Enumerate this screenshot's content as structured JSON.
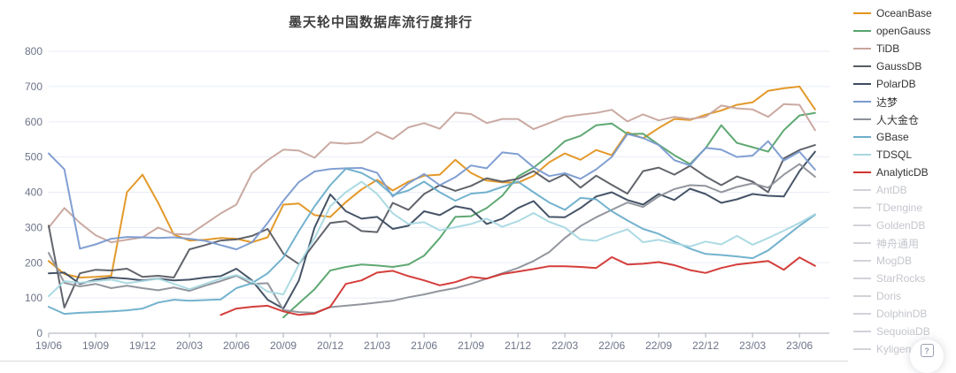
{
  "title": "墨天轮中国数据库流行度排行",
  "help_button": {
    "icon_glyph": "?"
  },
  "style_colors": {
    "grid": "#E8EDF6",
    "axis": "#A9AEB8",
    "axis_label": "#6E7488",
    "title_text": "#3E3E3E",
    "inactive_legend_text": "#C4C6CC",
    "inactive_legend_swatch": "#D2D3D8",
    "divider": "#DADADA"
  },
  "chart_data": {
    "type": "line",
    "title": "墨天轮中国数据库流行度排行",
    "xlabel": "",
    "ylabel": "",
    "ylim": [
      0,
      800
    ],
    "y_ticks": [
      0,
      100,
      200,
      300,
      400,
      500,
      600,
      700,
      800
    ],
    "grid": true,
    "legend_position": "right",
    "x_months": [
      "19/06",
      "19/07",
      "19/08",
      "19/09",
      "19/10",
      "19/11",
      "19/12",
      "20/01",
      "20/02",
      "20/03",
      "20/04",
      "20/05",
      "20/06",
      "20/07",
      "20/08",
      "20/09",
      "20/10",
      "20/11",
      "20/12",
      "21/01",
      "21/02",
      "21/03",
      "21/04",
      "21/05",
      "21/06",
      "21/07",
      "21/08",
      "21/09",
      "21/10",
      "21/11",
      "21/12",
      "22/01",
      "22/02",
      "22/03",
      "22/04",
      "22/05",
      "22/06",
      "22/07",
      "22/08",
      "22/09",
      "22/10",
      "22/11",
      "22/12",
      "23/01",
      "23/02",
      "23/03",
      "23/04",
      "23/05",
      "23/06",
      "23/07"
    ],
    "x_axis_tick_labels": [
      "19/06",
      "19/09",
      "19/12",
      "20/03",
      "20/06",
      "20/09",
      "20/12",
      "21/03",
      "21/06",
      "21/09",
      "21/12",
      "22/03",
      "22/06",
      "22/09",
      "22/12",
      "23/03",
      "23/06"
    ],
    "x_tick_every_n_months": 3,
    "series": [
      {
        "name": "OceanBase",
        "color": "#E2941F",
        "active": true,
        "values": [
          205,
          168,
          158,
          160,
          163,
          400,
          450,
          370,
          280,
          263,
          265,
          270,
          268,
          258,
          272,
          365,
          368,
          335,
          330,
          372,
          408,
          435,
          405,
          430,
          447,
          450,
          492,
          455,
          433,
          428,
          427,
          447,
          485,
          510,
          492,
          520,
          505,
          570,
          553,
          582,
          608,
          605,
          620,
          632,
          648,
          655,
          688,
          695,
          700,
          635
        ]
      },
      {
        "name": "openGauss",
        "color": "#56A36C",
        "active": true,
        "values": [
          null,
          null,
          null,
          null,
          null,
          null,
          null,
          null,
          null,
          null,
          null,
          null,
          null,
          null,
          null,
          45,
          85,
          125,
          178,
          188,
          195,
          192,
          188,
          195,
          220,
          270,
          330,
          332,
          355,
          390,
          445,
          470,
          505,
          545,
          560,
          590,
          595,
          565,
          566,
          535,
          505,
          480,
          525,
          590,
          540,
          528,
          515,
          576,
          618,
          625
        ]
      },
      {
        "name": "TiDB",
        "color": "#C7A59D",
        "active": true,
        "values": [
          300,
          355,
          313,
          278,
          258,
          265,
          272,
          300,
          282,
          280,
          310,
          340,
          365,
          454,
          491,
          521,
          518,
          498,
          541,
          538,
          541,
          571,
          551,
          584,
          596,
          580,
          626,
          622,
          596,
          608,
          608,
          579,
          596,
          614,
          620,
          625,
          634,
          601,
          621,
          604,
          614,
          608,
          614,
          646,
          638,
          635,
          614,
          650,
          648,
          576
        ]
      },
      {
        "name": "GaussDB",
        "color": "#585C63",
        "active": true,
        "values": [
          305,
          73,
          170,
          180,
          178,
          183,
          160,
          163,
          158,
          238,
          250,
          263,
          266,
          276,
          296,
          226,
          196,
          255,
          313,
          318,
          290,
          287,
          370,
          350,
          395,
          420,
          404,
          418,
          440,
          430,
          438,
          460,
          430,
          451,
          413,
          447,
          421,
          396,
          460,
          470,
          450,
          475,
          445,
          420,
          445,
          430,
          400,
          496,
          520,
          534
        ]
      },
      {
        "name": "PolarDB",
        "color": "#3C4B5F",
        "active": true,
        "values": [
          170,
          172,
          140,
          152,
          158,
          155,
          150,
          155,
          150,
          152,
          158,
          162,
          183,
          150,
          95,
          70,
          150,
          300,
          394,
          346,
          325,
          330,
          296,
          305,
          346,
          335,
          360,
          352,
          310,
          325,
          355,
          375,
          330,
          329,
          355,
          388,
          400,
          378,
          365,
          395,
          378,
          410,
          395,
          370,
          380,
          395,
          390,
          388,
          460,
          515
        ]
      },
      {
        "name": "达梦",
        "color": "#7A9AD0",
        "active": true,
        "values": [
          510,
          465,
          240,
          252,
          268,
          273,
          272,
          270,
          272,
          268,
          262,
          250,
          238,
          258,
          313,
          376,
          429,
          459,
          466,
          468,
          469,
          455,
          388,
          425,
          452,
          420,
          443,
          476,
          468,
          513,
          508,
          471,
          446,
          454,
          438,
          465,
          500,
          565,
          554,
          534,
          491,
          476,
          526,
          521,
          500,
          504,
          545,
          490,
          515,
          464
        ]
      },
      {
        "name": "人大金仓",
        "color": "#8D9099",
        "active": true,
        "values": [
          228,
          143,
          133,
          140,
          128,
          135,
          128,
          122,
          130,
          120,
          135,
          148,
          163,
          140,
          142,
          66,
          60,
          58,
          74,
          78,
          82,
          87,
          92,
          102,
          110,
          120,
          128,
          140,
          155,
          170,
          185,
          205,
          230,
          270,
          304,
          329,
          350,
          371,
          358,
          388,
          409,
          420,
          418,
          400,
          415,
          425,
          413,
          450,
          480,
          444
        ]
      },
      {
        "name": "GBase",
        "color": "#6CAECB",
        "active": true,
        "values": [
          75,
          55,
          58,
          60,
          62,
          65,
          70,
          87,
          95,
          92,
          94,
          96,
          128,
          142,
          170,
          215,
          290,
          360,
          420,
          467,
          455,
          430,
          392,
          405,
          430,
          400,
          376,
          396,
          400,
          415,
          430,
          400,
          371,
          350,
          384,
          380,
          346,
          320,
          296,
          282,
          260,
          240,
          225,
          222,
          218,
          213,
          235,
          270,
          305,
          336
        ]
      },
      {
        "name": "TDSQL",
        "color": "#A8D8E2",
        "active": true,
        "values": [
          105,
          148,
          143,
          148,
          152,
          142,
          148,
          155,
          140,
          125,
          140,
          155,
          165,
          148,
          118,
          110,
          195,
          270,
          360,
          400,
          430,
          395,
          340,
          310,
          315,
          292,
          301,
          310,
          325,
          302,
          318,
          341,
          316,
          300,
          266,
          262,
          280,
          295,
          258,
          265,
          255,
          246,
          260,
          252,
          276,
          251,
          270,
          291,
          313,
          338
        ]
      },
      {
        "name": "AnalyticDB",
        "color": "#D23430",
        "active": true,
        "values": [
          null,
          null,
          null,
          null,
          null,
          null,
          null,
          null,
          null,
          null,
          null,
          52,
          70,
          75,
          78,
          62,
          52,
          56,
          75,
          140,
          150,
          172,
          177,
          162,
          150,
          136,
          145,
          160,
          155,
          168,
          175,
          182,
          190,
          190,
          188,
          185,
          216,
          195,
          197,
          202,
          193,
          179,
          171,
          185,
          195,
          200,
          205,
          180,
          215,
          191
        ]
      },
      {
        "name": "AntDB",
        "color": "#D2D3D8",
        "active": false,
        "values": null
      },
      {
        "name": "TDengine",
        "color": "#D2D3D8",
        "active": false,
        "values": null
      },
      {
        "name": "GoldenDB",
        "color": "#D2D3D8",
        "active": false,
        "values": null
      },
      {
        "name": "神舟通用",
        "color": "#D2D3D8",
        "active": false,
        "values": null
      },
      {
        "name": "MogDB",
        "color": "#D2D3D8",
        "active": false,
        "values": null
      },
      {
        "name": "StarRocks",
        "color": "#D2D3D8",
        "active": false,
        "values": null
      },
      {
        "name": "Doris",
        "color": "#D2D3D8",
        "active": false,
        "values": null
      },
      {
        "name": "DolphinDB",
        "color": "#D2D3D8",
        "active": false,
        "values": null
      },
      {
        "name": "SequoiaDB",
        "color": "#D2D3D8",
        "active": false,
        "values": null
      },
      {
        "name": "Kyligence",
        "color": "#D2D3D8",
        "active": false,
        "values": null
      }
    ]
  }
}
